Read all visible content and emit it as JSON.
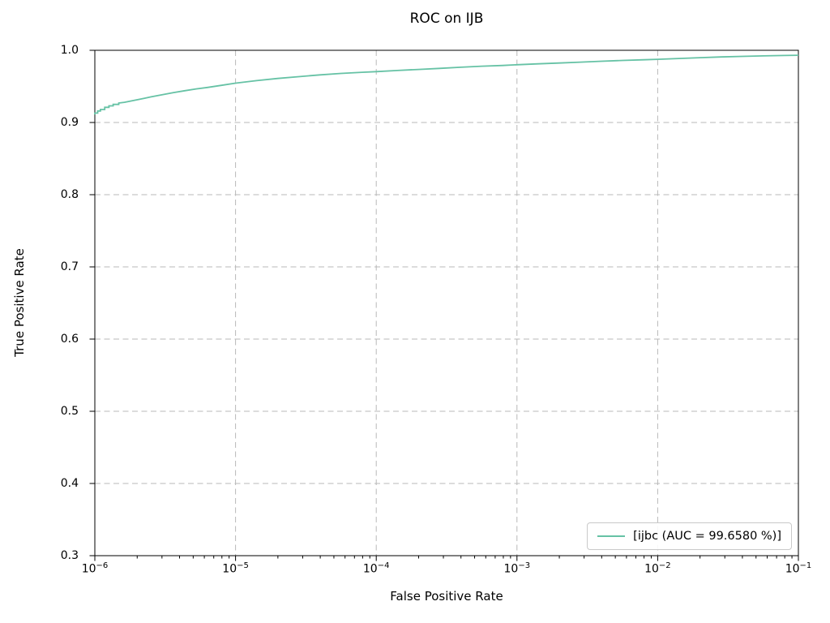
{
  "chart_data": {
    "type": "line",
    "title": "ROC on IJB",
    "xlabel": "False Positive Rate",
    "ylabel": "True Positive Rate",
    "x_scale": "log10",
    "xlim": [
      1e-06,
      0.1
    ],
    "ylim": [
      0.3,
      1.0
    ],
    "x_tick_exponents": [
      -6,
      -5,
      -4,
      -3,
      -2,
      -1
    ],
    "y_ticks": [
      0.3,
      0.4,
      0.5,
      0.6,
      0.7,
      0.8,
      0.9,
      1.0
    ],
    "grid": true,
    "grid_style": "dashed",
    "grid_color": "#b8b8b8",
    "legend_position": "lower right",
    "series": [
      {
        "name": "[ijbc (AUC = 99.6580 %)]",
        "color": "#66c2a5",
        "points_log10x_y": [
          [
            -6.0,
            0.911
          ],
          [
            -6.0,
            0.913
          ],
          [
            -5.98,
            0.913
          ],
          [
            -5.98,
            0.916
          ],
          [
            -5.96,
            0.916
          ],
          [
            -5.96,
            0.918
          ],
          [
            -5.93,
            0.918
          ],
          [
            -5.93,
            0.921
          ],
          [
            -5.9,
            0.921
          ],
          [
            -5.9,
            0.923
          ],
          [
            -5.87,
            0.923
          ],
          [
            -5.87,
            0.925
          ],
          [
            -5.83,
            0.925
          ],
          [
            -5.83,
            0.927
          ],
          [
            -5.79,
            0.928
          ],
          [
            -5.75,
            0.9295
          ],
          [
            -5.7,
            0.9315
          ],
          [
            -5.65,
            0.9335
          ],
          [
            -5.6,
            0.9355
          ],
          [
            -5.52,
            0.9385
          ],
          [
            -5.44,
            0.9415
          ],
          [
            -5.36,
            0.944
          ],
          [
            -5.28,
            0.9465
          ],
          [
            -5.2,
            0.9485
          ],
          [
            -5.1,
            0.9515
          ],
          [
            -5.0,
            0.9545
          ],
          [
            -4.85,
            0.958
          ],
          [
            -4.7,
            0.961
          ],
          [
            -4.55,
            0.9635
          ],
          [
            -4.4,
            0.966
          ],
          [
            -4.25,
            0.968
          ],
          [
            -4.1,
            0.9695
          ],
          [
            -4.0,
            0.9705
          ],
          [
            -3.85,
            0.972
          ],
          [
            -3.7,
            0.9735
          ],
          [
            -3.55,
            0.975
          ],
          [
            -3.4,
            0.9765
          ],
          [
            -3.25,
            0.978
          ],
          [
            -3.1,
            0.979
          ],
          [
            -3.0,
            0.98
          ],
          [
            -2.85,
            0.9812
          ],
          [
            -2.7,
            0.9824
          ],
          [
            -2.55,
            0.9836
          ],
          [
            -2.4,
            0.9848
          ],
          [
            -2.25,
            0.986
          ],
          [
            -2.1,
            0.9868
          ],
          [
            -2.0,
            0.9875
          ],
          [
            -1.85,
            0.9887
          ],
          [
            -1.7,
            0.9898
          ],
          [
            -1.55,
            0.9908
          ],
          [
            -1.4,
            0.9916
          ],
          [
            -1.25,
            0.9922
          ],
          [
            -1.1,
            0.9928
          ],
          [
            -1.0,
            0.9932
          ]
        ]
      }
    ]
  }
}
